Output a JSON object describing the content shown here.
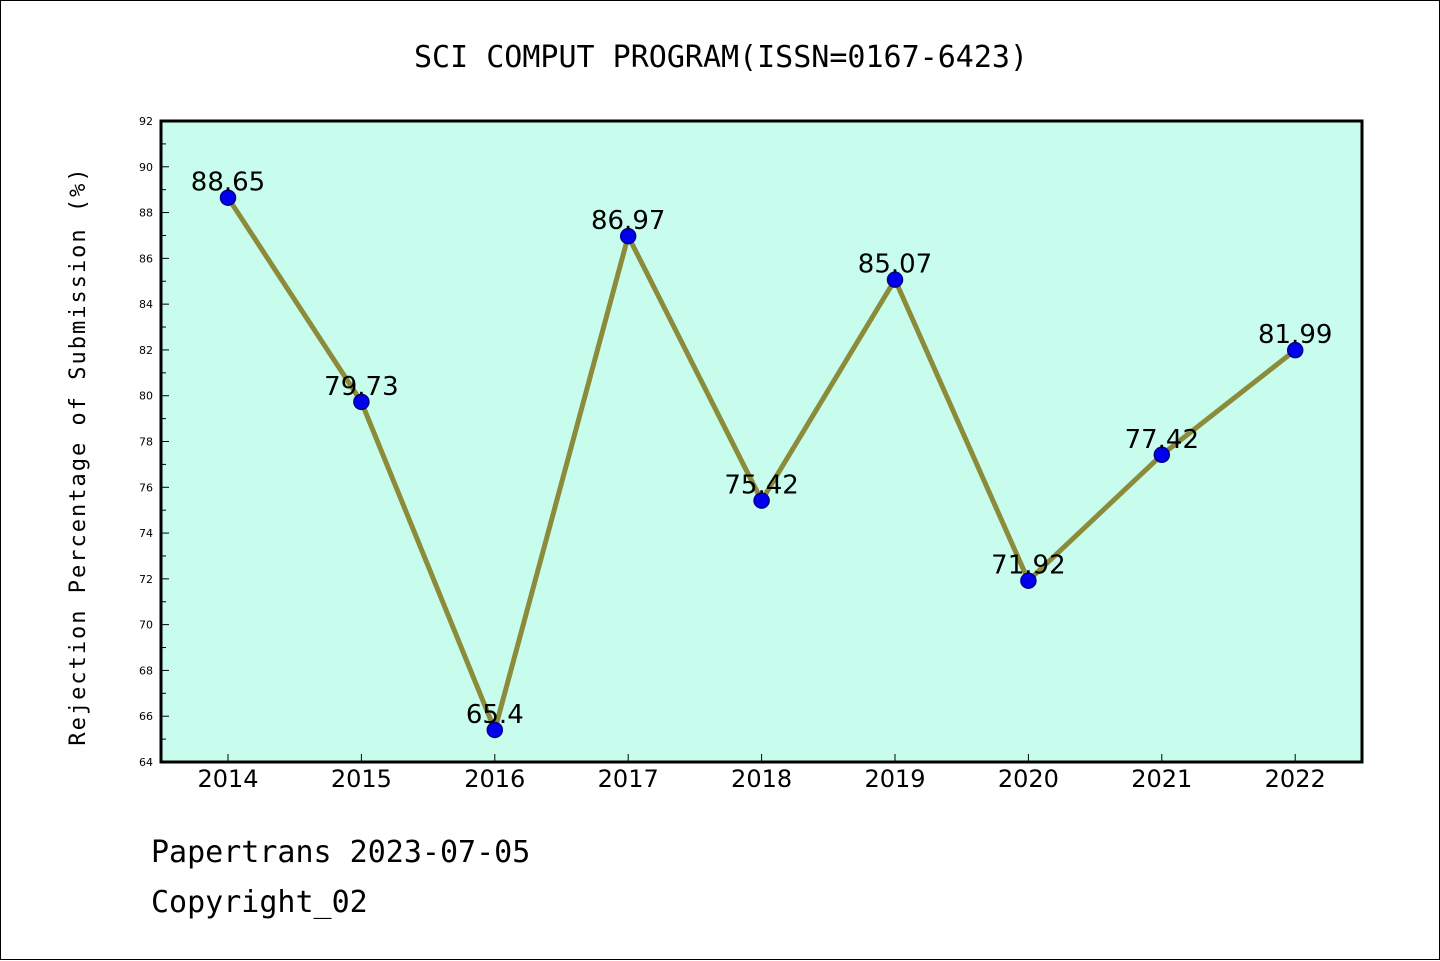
{
  "chart_data": {
    "type": "line",
    "title": "SCI COMPUT PROGRAM(ISSN=0167-6423)",
    "xlabel": "",
    "ylabel": "Rejection Percentage of Submission (%)",
    "categories": [
      "2014",
      "2015",
      "2016",
      "2017",
      "2018",
      "2019",
      "2020",
      "2021",
      "2022"
    ],
    "values": [
      88.65,
      79.73,
      65.4,
      86.97,
      75.42,
      85.07,
      71.92,
      77.42,
      81.99
    ],
    "value_labels": [
      "88.65",
      "79.73",
      "65.4",
      "86.97",
      "75.42",
      "85.07",
      "71.92",
      "77.42",
      "81.99"
    ],
    "ylim": [
      64,
      92
    ],
    "yticks": [
      64,
      66,
      68,
      70,
      72,
      74,
      76,
      78,
      80,
      82,
      84,
      86,
      88,
      90,
      92
    ],
    "grid": false,
    "legend": "none",
    "colors": {
      "plot_background": "#c8fdee",
      "line": "#8b8b3a",
      "marker": "#0000ee",
      "marker_edge": "#00008b"
    }
  },
  "footer": {
    "line1": "Papertrans 2023-07-05",
    "line2": "Copyright_02"
  }
}
